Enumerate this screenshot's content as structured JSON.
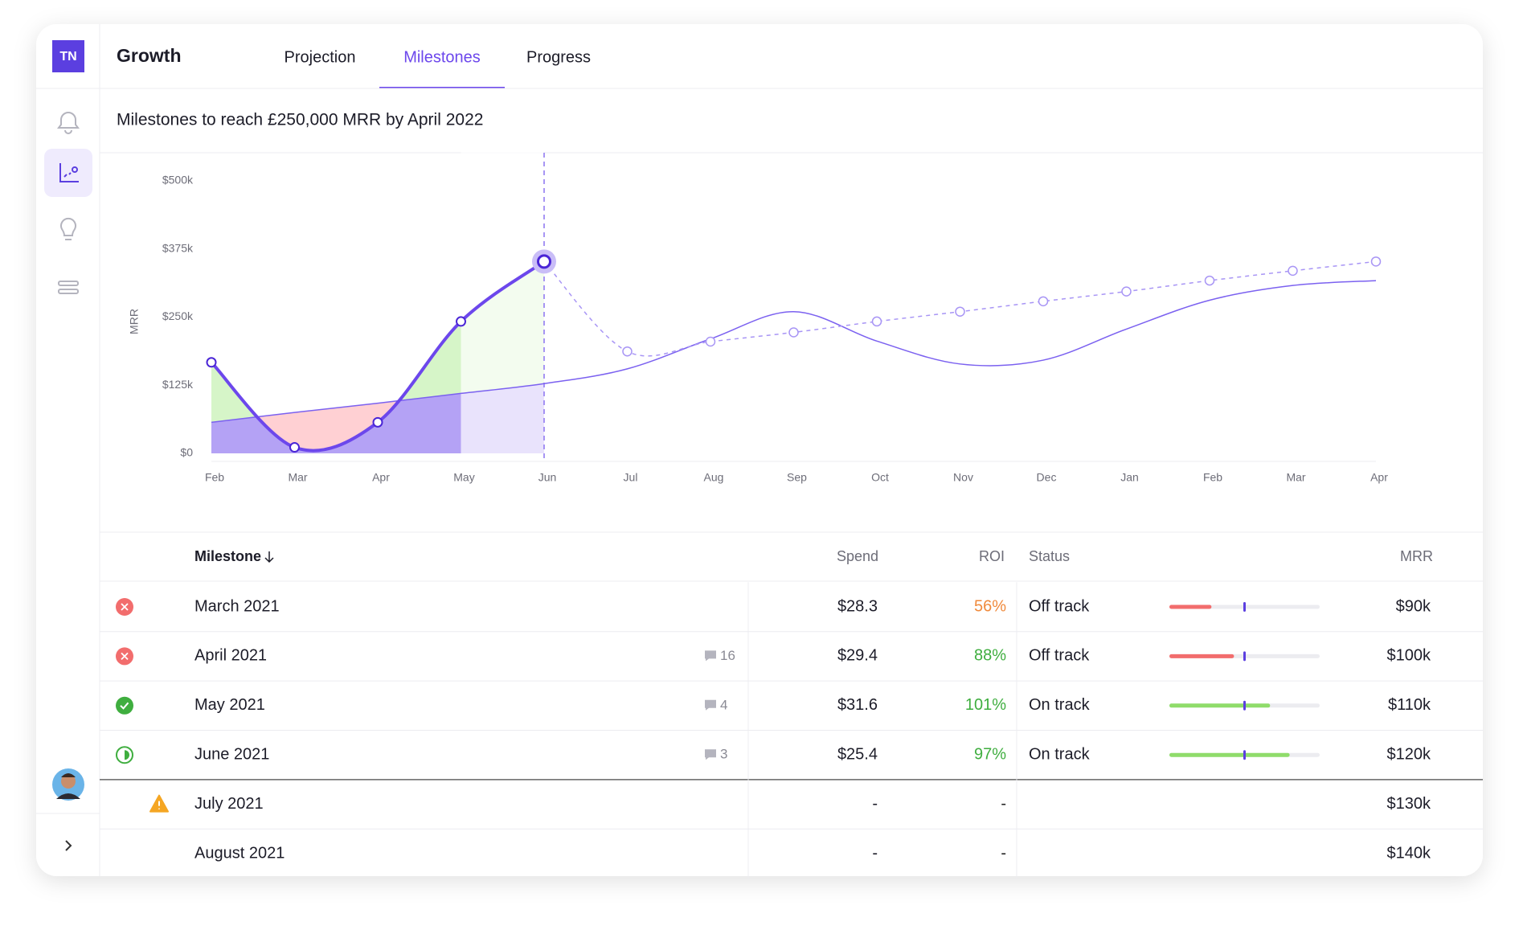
{
  "app": {
    "logo": "TN",
    "title": "Growth",
    "tabs": [
      "Projection",
      "Milestones",
      "Progress"
    ],
    "active_tab": 1
  },
  "chart_data": {
    "type": "line",
    "title": "Milestones to reach £250,000 MRR by April 2022",
    "y_label": "MRR",
    "categories": [
      "Feb",
      "Mar",
      "Apr",
      "May",
      "Jun",
      "Jul",
      "Aug",
      "Sep",
      "Oct",
      "Nov",
      "Dec",
      "Jan",
      "Feb",
      "Mar",
      "Apr"
    ],
    "series": [
      {
        "color": "#6c47ec",
        "line_style": "solid",
        "width": 4,
        "markers": true,
        "values": [
          167,
          11,
          57,
          242,
          352,
          null,
          null,
          null,
          null,
          null,
          null,
          null,
          null,
          null,
          null
        ]
      },
      {
        "color": "#7b61f0",
        "line_style": "solid",
        "width": 1.5,
        "markers": false,
        "values": [
          57,
          75,
          92,
          110,
          128,
          155,
          210,
          260,
          206,
          164,
          171,
          228,
          281,
          308,
          317
        ]
      },
      {
        "color": "#a895f5",
        "line_style": "dashed",
        "width": 1.5,
        "markers": true,
        "values": [
          null,
          null,
          null,
          null,
          352,
          187,
          205,
          222,
          242,
          260,
          279,
          297,
          317,
          335,
          352
        ]
      }
    ],
    "ylim": [
      0,
      500
    ],
    "yticks": [
      {
        "value": 0,
        "label": "$0"
      },
      {
        "value": 125,
        "label": "$125k"
      },
      {
        "value": 250,
        "label": "$250k"
      },
      {
        "value": 375,
        "label": "$375k"
      },
      {
        "value": 500,
        "label": "$500k"
      }
    ],
    "highlight_index": 4
  },
  "table": {
    "columns": [
      "Milestone",
      "Spend",
      "ROI",
      "Status",
      "MRR"
    ],
    "rows": [
      {
        "state": "off",
        "name": "March 2021",
        "comments": null,
        "spend": "$28.3",
        "roi": "56%",
        "roi_color": "#f08a3c",
        "status": "Off track",
        "progress": 28,
        "mrr": "$90k"
      },
      {
        "state": "off",
        "name": "April 2021",
        "comments": 16,
        "spend": "$29.4",
        "roi": "88%",
        "roi_color": "#3fae3f",
        "status": "Off track",
        "progress": 43,
        "mrr": "$100k"
      },
      {
        "state": "on",
        "name": "May 2021",
        "comments": 4,
        "spend": "$31.6",
        "roi": "101%",
        "roi_color": "#3fae3f",
        "status": "On track",
        "progress": 67,
        "mrr": "$110k"
      },
      {
        "state": "half",
        "name": "June 2021",
        "comments": 3,
        "spend": "$25.4",
        "roi": "97%",
        "roi_color": "#3fae3f",
        "status": "On track",
        "progress": 80,
        "mrr": "$120k"
      },
      {
        "state": "warn",
        "name": "July 2021",
        "comments": null,
        "spend": "-",
        "roi": "-",
        "roi_color": "#222",
        "status": null,
        "progress": null,
        "mrr": "$130k"
      },
      {
        "state": "none",
        "name": "August 2021",
        "comments": null,
        "spend": "-",
        "roi": "-",
        "roi_color": "#222",
        "status": null,
        "progress": null,
        "mrr": "$140k"
      }
    ]
  }
}
